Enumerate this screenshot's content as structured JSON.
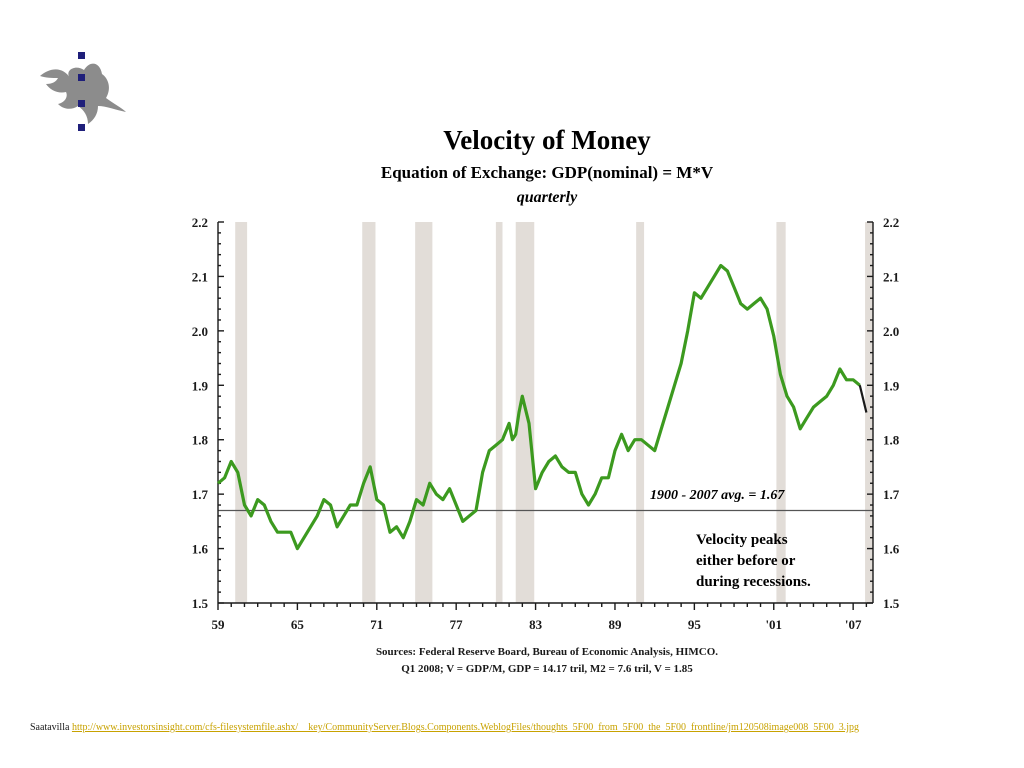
{
  "logo": {
    "icon": "flame-logo-icon",
    "colors": {
      "flame": "#8c8c8c",
      "dots": "#1f1f7a"
    }
  },
  "chart_data": {
    "type": "line",
    "title": "Velocity of Money",
    "subtitle": "Equation of Exchange: GDP(nominal) = M*V",
    "frequency": "quarterly",
    "x_tick_labels": [
      "59",
      "65",
      "71",
      "77",
      "83",
      "89",
      "95",
      "'01",
      "'07"
    ],
    "x_tick_years": [
      1959,
      1965,
      1971,
      1977,
      1983,
      1989,
      1995,
      2001,
      2007
    ],
    "xlim": [
      1959,
      2008.5
    ],
    "ylim": [
      1.5,
      2.2
    ],
    "y_ticks": [
      "1.5",
      "1.6",
      "1.7",
      "1.8",
      "1.9",
      "2.0",
      "2.1",
      "2.2"
    ],
    "grid": false,
    "series": [
      {
        "color": "#3c9a1f",
        "x": [
          1959.0,
          1959.5,
          1960.0,
          1960.5,
          1961.0,
          1961.5,
          1962.0,
          1962.5,
          1963.0,
          1963.5,
          1964.0,
          1964.5,
          1965.0,
          1965.5,
          1966.0,
          1966.5,
          1967.0,
          1967.5,
          1968.0,
          1968.5,
          1969.0,
          1969.5,
          1970.0,
          1970.5,
          1971.0,
          1971.5,
          1972.0,
          1972.5,
          1973.0,
          1973.5,
          1974.0,
          1974.5,
          1975.0,
          1975.5,
          1976.0,
          1976.5,
          1977.0,
          1977.5,
          1978.0,
          1978.5,
          1979.0,
          1979.5,
          1980.0,
          1980.5,
          1981.0,
          1981.25,
          1981.5,
          1981.75,
          1982.0,
          1982.5,
          1983.0,
          1983.5,
          1984.0,
          1984.5,
          1985.0,
          1985.5,
          1986.0,
          1986.5,
          1987.0,
          1987.5,
          1988.0,
          1988.5,
          1989.0,
          1989.5,
          1990.0,
          1990.5,
          1991.0,
          1991.5,
          1992.0,
          1992.5,
          1993.0,
          1993.5,
          1994.0,
          1994.5,
          1995.0,
          1995.5,
          1996.0,
          1996.5,
          1997.0,
          1997.5,
          1998.0,
          1998.5,
          1999.0,
          1999.5,
          2000.0,
          2000.5,
          2001.0,
          2001.5,
          2002.0,
          2002.5,
          2003.0,
          2003.5,
          2004.0,
          2004.5,
          2005.0,
          2005.5,
          2006.0,
          2006.5,
          2007.0,
          2007.5,
          2008.0
        ],
        "y": [
          1.72,
          1.73,
          1.76,
          1.74,
          1.68,
          1.66,
          1.69,
          1.68,
          1.65,
          1.63,
          1.63,
          1.63,
          1.6,
          1.62,
          1.64,
          1.66,
          1.69,
          1.68,
          1.64,
          1.66,
          1.68,
          1.68,
          1.72,
          1.75,
          1.69,
          1.68,
          1.63,
          1.64,
          1.62,
          1.65,
          1.69,
          1.68,
          1.72,
          1.7,
          1.69,
          1.71,
          1.68,
          1.65,
          1.66,
          1.67,
          1.74,
          1.78,
          1.79,
          1.8,
          1.83,
          1.8,
          1.81,
          1.85,
          1.88,
          1.83,
          1.71,
          1.74,
          1.76,
          1.77,
          1.75,
          1.74,
          1.74,
          1.7,
          1.68,
          1.7,
          1.73,
          1.73,
          1.78,
          1.81,
          1.78,
          1.8,
          1.8,
          1.79,
          1.78,
          1.82,
          1.86,
          1.9,
          1.94,
          2.0,
          2.07,
          2.06,
          2.08,
          2.1,
          2.12,
          2.11,
          2.08,
          2.05,
          2.04,
          2.05,
          2.06,
          2.04,
          1.99,
          1.92,
          1.88,
          1.86,
          1.82,
          1.84,
          1.86,
          1.87,
          1.88,
          1.9,
          1.93,
          1.91,
          1.91,
          1.9,
          1.85
        ]
      }
    ],
    "recessions": [
      [
        1960.3,
        1961.2
      ],
      [
        1969.9,
        1970.9
      ],
      [
        1973.9,
        1975.2
      ],
      [
        1980.0,
        1980.5
      ],
      [
        1981.5,
        1982.9
      ],
      [
        1990.6,
        1991.2
      ],
      [
        2001.2,
        2001.9
      ],
      [
        2007.9,
        2008.5
      ]
    ],
    "reference_line": {
      "value": 1.67,
      "label": "1900 - 2007 avg. = 1.67"
    },
    "annotation": [
      "Velocity peaks",
      "either before or",
      "during recessions."
    ],
    "sources": [
      "Sources: Federal Reserve Board, Bureau of Economic Analysis, HIMCO.",
      "Q1 2008; V = GDP/M, GDP = 14.17 tril, M2 = 7.6 tril, V = 1.85"
    ]
  },
  "footer": {
    "label": "Saatavilla",
    "link_text": "http://www.investorsinsight.com/cfs-filesystemfile.ashx/__key/CommunityServer.Blogs.Components.WeblogFiles/thoughts_5F00_from_5F00_the_5F00_frontline/jm120508image008_5F00_3.jpg",
    "link_color": "#c8a200"
  }
}
